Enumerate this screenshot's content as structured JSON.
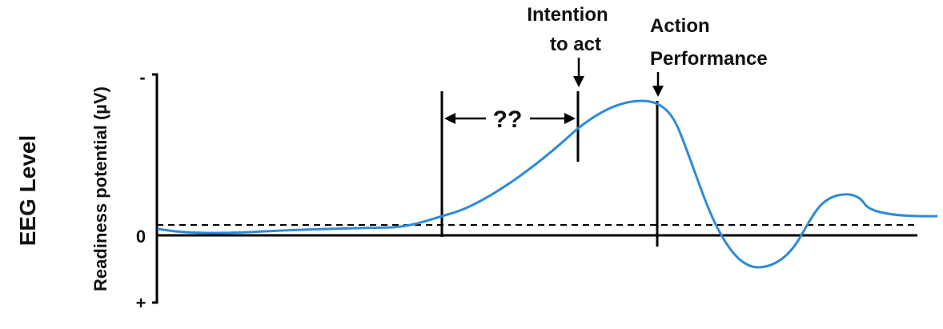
{
  "diagram": {
    "y_label_outer": "EEG Level",
    "y_label_inner": "Readiness potential (µV)",
    "tick_minus": "-",
    "tick_zero": "0",
    "tick_plus": "+",
    "intention_line1": "Intention",
    "intention_line2": "to act",
    "action_line1": "Action",
    "action_line2": "Performance",
    "gap_label": "??",
    "colors": {
      "curve": "#2e8bd8",
      "lines": "#000000",
      "background": "#ffffff"
    }
  }
}
